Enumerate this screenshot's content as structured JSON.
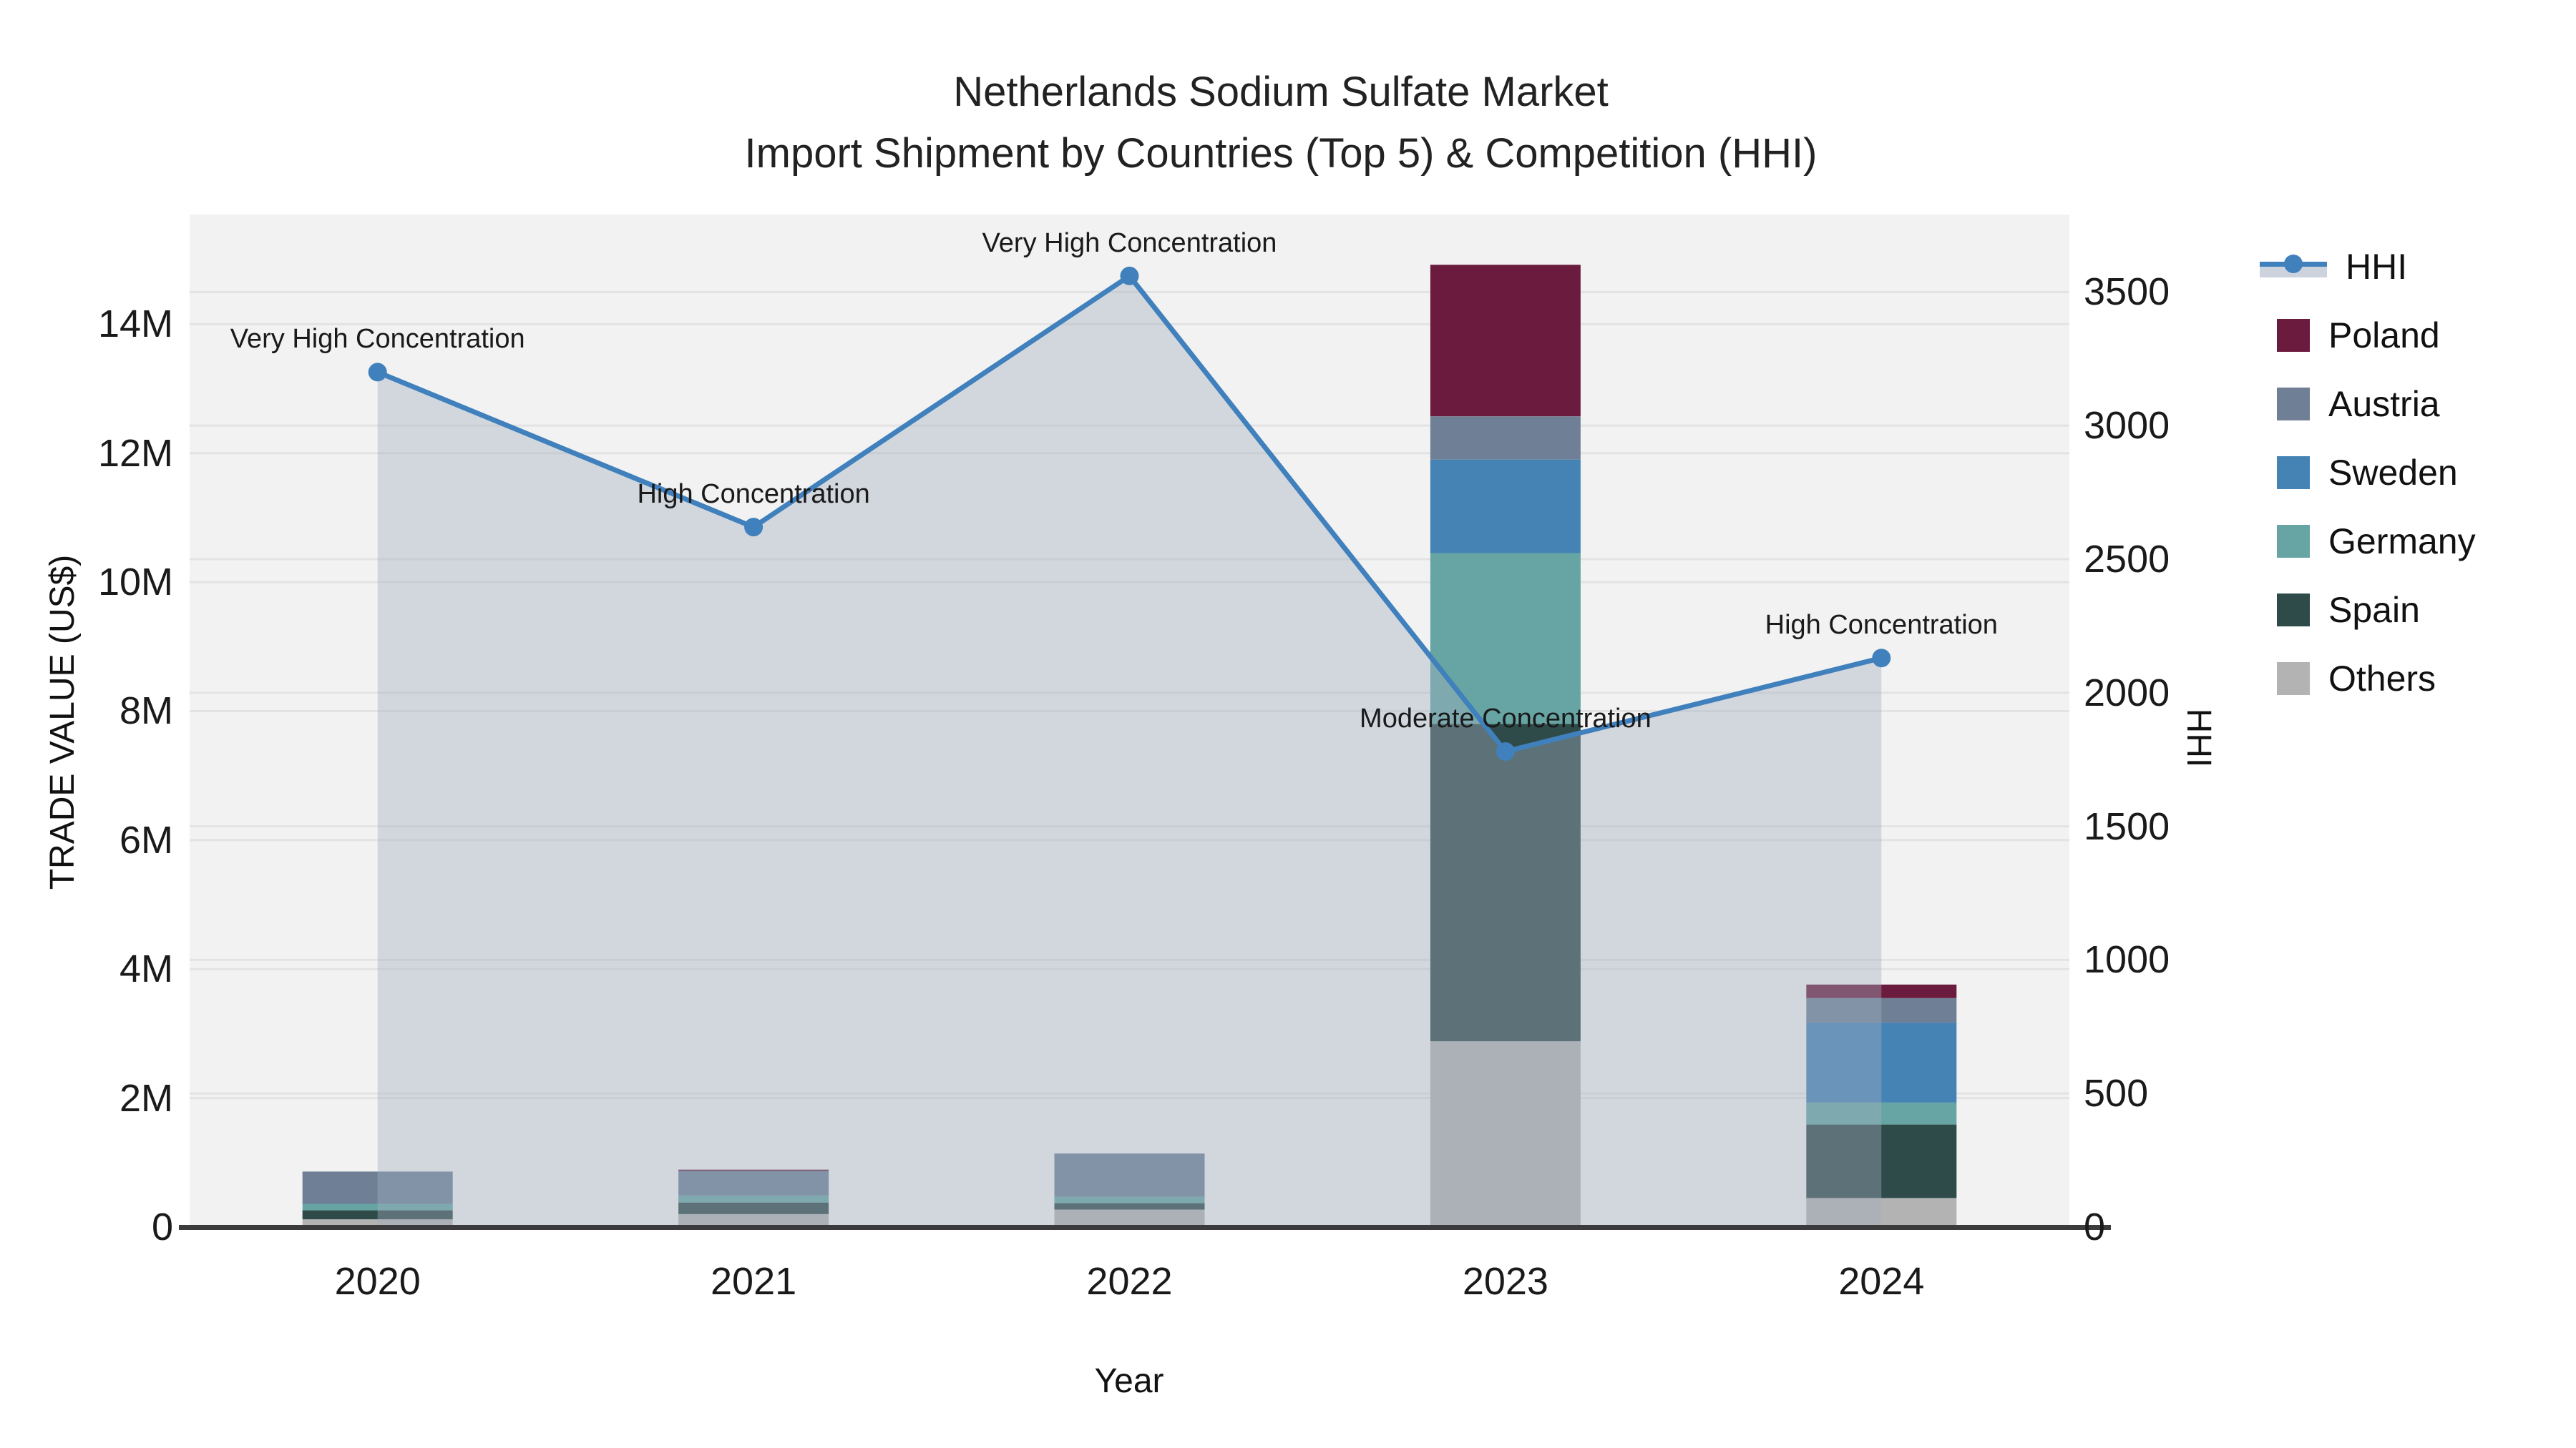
{
  "title": {
    "line1": "Netherlands Sodium Sulfate Market",
    "line2": "Import Shipment by Countries (Top 5) & Competition (HHI)"
  },
  "colors": {
    "plot_background": "#F2F2F2",
    "gridline": "#E3E3E3",
    "axis_line": "#3B3B3B",
    "hhi_line": "#4080BC",
    "hhi_area": "rgba(163,175,192,0.40)",
    "poland": "#6B1B3D",
    "austria": "#6F8096",
    "sweden": "#4583B5",
    "germany": "#66A5A3",
    "spain": "#2E4A49",
    "others": "#B3B3B3"
  },
  "chart_data": {
    "type": "combo: stacked bar (left axis) + line with filled area (right axis)",
    "categories": [
      "2020",
      "2021",
      "2022",
      "2023",
      "2024"
    ],
    "bar_series_bottom_to_top": [
      {
        "name": "Others",
        "color": "#B3B3B3",
        "values": [
          120000,
          200000,
          270000,
          2880000,
          450000
        ]
      },
      {
        "name": "Spain",
        "color": "#2E4A49",
        "values": [
          140000,
          180000,
          100000,
          4920000,
          1140000
        ]
      },
      {
        "name": "Germany",
        "color": "#66A5A3",
        "values": [
          100000,
          110000,
          100000,
          2650000,
          340000
        ]
      },
      {
        "name": "Sweden",
        "color": "#4583B5",
        "values": [
          0,
          0,
          0,
          1450000,
          1240000
        ]
      },
      {
        "name": "Austria",
        "color": "#6F8096",
        "values": [
          500000,
          380000,
          670000,
          670000,
          380000
        ]
      },
      {
        "name": "Poland",
        "color": "#6B1B3D",
        "values": [
          0,
          20000,
          0,
          2350000,
          210000
        ]
      }
    ],
    "line_series": {
      "name": "HHI",
      "color": "#4080BC",
      "area_color": "rgba(163,175,192,0.40)",
      "values": [
        3200,
        2620,
        3560,
        1780,
        2130
      ]
    },
    "annotations": [
      {
        "category": "2020",
        "text": "Very High Concentration"
      },
      {
        "category": "2021",
        "text": "High Concentration"
      },
      {
        "category": "2022",
        "text": "Very High Concentration"
      },
      {
        "category": "2023",
        "text": "Moderate Concentration"
      },
      {
        "category": "2024",
        "text": "High Concentration"
      }
    ],
    "x": {
      "label": "Year"
    },
    "y_left": {
      "label": "TRADE VALUE (US$)",
      "range": [
        0,
        15700000
      ],
      "ticks": [
        {
          "label": "0",
          "value": 0
        },
        {
          "label": "2M",
          "value": 2000000
        },
        {
          "label": "4M",
          "value": 4000000
        },
        {
          "label": "6M",
          "value": 6000000
        },
        {
          "label": "8M",
          "value": 8000000
        },
        {
          "label": "10M",
          "value": 10000000
        },
        {
          "label": "12M",
          "value": 12000000
        },
        {
          "label": "14M",
          "value": 14000000
        }
      ]
    },
    "y_right": {
      "label": "HHI",
      "range": [
        0,
        3790
      ],
      "ticks": [
        {
          "label": "0",
          "value": 0
        },
        {
          "label": "500",
          "value": 500
        },
        {
          "label": "1000",
          "value": 1000
        },
        {
          "label": "1500",
          "value": 1500
        },
        {
          "label": "2000",
          "value": 2000
        },
        {
          "label": "2500",
          "value": 2500
        },
        {
          "label": "3000",
          "value": 3000
        },
        {
          "label": "3500",
          "value": 3500
        }
      ]
    },
    "grid": true,
    "legend_position": "right"
  },
  "legend": {
    "items": [
      {
        "label": "HHI",
        "color": "#4080BC",
        "type": "line"
      },
      {
        "label": "Poland",
        "color": "#6B1B3D",
        "type": "swatch"
      },
      {
        "label": "Austria",
        "color": "#6F8096",
        "type": "swatch"
      },
      {
        "label": "Sweden",
        "color": "#4583B5",
        "type": "swatch"
      },
      {
        "label": "Germany",
        "color": "#66A5A3",
        "type": "swatch"
      },
      {
        "label": "Spain",
        "color": "#2E4A49",
        "type": "swatch"
      },
      {
        "label": "Others",
        "color": "#B3B3B3",
        "type": "swatch"
      }
    ]
  }
}
